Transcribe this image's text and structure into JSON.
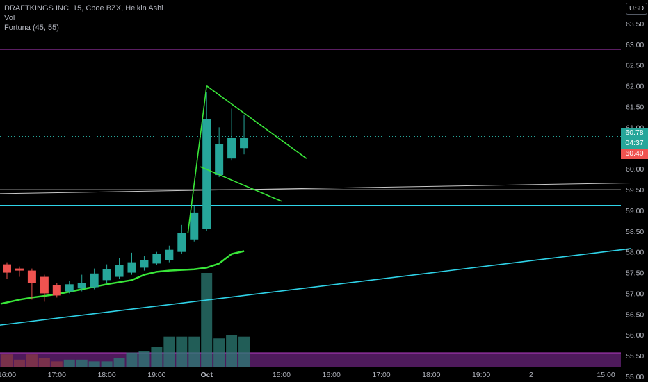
{
  "legend": {
    "title": "DRAFTKINGS INC, 15, Cboe BZX, Heikin Ashi",
    "vol": "Vol",
    "indicator": "Fortuna (45, 55)"
  },
  "currency": "USD",
  "price_tags": {
    "current": "60.78",
    "countdown": "04:37",
    "second": "60.40"
  },
  "colors": {
    "background": "#000000",
    "up": "#26a69a",
    "down": "#ef5350",
    "drawing_green": "#39e639",
    "trend_cyan": "#2fd3e8",
    "band_purple": "#b53cc4",
    "volume_up": "#1f5c57",
    "volume_down": "#6b2a2a",
    "band_fill": "#5c1f6b"
  },
  "chart_data": {
    "type": "candlestick",
    "style": "Heikin Ashi",
    "y_axis": {
      "min": 54.9,
      "max": 63.9,
      "ticks": [
        "55.00",
        "55.50",
        "56.00",
        "56.50",
        "57.00",
        "57.50",
        "58.00",
        "58.50",
        "59.00",
        "59.50",
        "60.00",
        "60.50",
        "61.00",
        "61.50",
        "62.00",
        "62.50",
        "63.00",
        "63.50"
      ]
    },
    "x_axis": {
      "ticks": [
        {
          "label": "16:00",
          "slot": 0
        },
        {
          "label": "17:00",
          "slot": 4
        },
        {
          "label": "18:00",
          "slot": 8
        },
        {
          "label": "19:00",
          "slot": 12
        },
        {
          "label": "Oct",
          "slot": 16
        },
        {
          "label": "15:00",
          "slot": 22
        },
        {
          "label": "16:00",
          "slot": 26
        },
        {
          "label": "17:00",
          "slot": 30
        },
        {
          "label": "18:00",
          "slot": 34
        },
        {
          "label": "19:00",
          "slot": 38
        },
        {
          "label": "2",
          "slot": 42
        },
        {
          "label": "15:00",
          "slot": 48
        }
      ]
    },
    "candles": [
      {
        "o": 57.7,
        "c": 57.5,
        "h": 57.75,
        "l": 57.35
      },
      {
        "o": 57.6,
        "c": 57.55,
        "h": 57.65,
        "l": 57.4
      },
      {
        "o": 57.55,
        "c": 57.25,
        "h": 57.6,
        "l": 56.85
      },
      {
        "o": 57.4,
        "c": 57.0,
        "h": 57.45,
        "l": 56.8
      },
      {
        "o": 57.2,
        "c": 56.95,
        "h": 57.25,
        "l": 56.9
      },
      {
        "o": 57.05,
        "c": 57.22,
        "h": 57.3,
        "l": 57.0
      },
      {
        "o": 57.12,
        "c": 57.25,
        "h": 57.45,
        "l": 57.05
      },
      {
        "o": 57.15,
        "c": 57.48,
        "h": 57.6,
        "l": 57.1
      },
      {
        "o": 57.32,
        "c": 57.58,
        "h": 57.7,
        "l": 57.25
      },
      {
        "o": 57.4,
        "c": 57.68,
        "h": 57.85,
        "l": 57.35
      },
      {
        "o": 57.5,
        "c": 57.75,
        "h": 57.98,
        "l": 57.45
      },
      {
        "o": 57.62,
        "c": 57.8,
        "h": 57.9,
        "l": 57.55
      },
      {
        "o": 57.72,
        "c": 57.95,
        "h": 58.0,
        "l": 57.68
      },
      {
        "o": 57.8,
        "c": 58.05,
        "h": 58.15,
        "l": 57.75
      },
      {
        "o": 58.0,
        "c": 58.45,
        "h": 58.65,
        "l": 57.95
      },
      {
        "o": 58.3,
        "c": 58.95,
        "h": 59.1,
        "l": 58.25
      },
      {
        "o": 58.55,
        "c": 61.2,
        "h": 61.85,
        "l": 58.5
      },
      {
        "o": 59.85,
        "c": 60.6,
        "h": 61.0,
        "l": 59.8
      },
      {
        "o": 60.25,
        "c": 60.75,
        "h": 61.45,
        "l": 60.2
      },
      {
        "o": 60.5,
        "c": 60.75,
        "h": 61.3,
        "l": 60.35
      }
    ],
    "volume": [
      0.07,
      0.04,
      0.07,
      0.05,
      0.03,
      0.04,
      0.04,
      0.03,
      0.03,
      0.05,
      0.08,
      0.09,
      0.11,
      0.17,
      0.17,
      0.17,
      0.53,
      0.16,
      0.18,
      0.17
    ],
    "fortuna_line": [
      {
        "slot": -0.5,
        "v": 56.75
      },
      {
        "slot": 1,
        "v": 56.85
      },
      {
        "slot": 2,
        "v": 56.9
      },
      {
        "slot": 4,
        "v": 56.98
      },
      {
        "slot": 6,
        "v": 57.1
      },
      {
        "slot": 8,
        "v": 57.22
      },
      {
        "slot": 10,
        "v": 57.32
      },
      {
        "slot": 11,
        "v": 57.45
      },
      {
        "slot": 12,
        "v": 57.52
      },
      {
        "slot": 13,
        "v": 57.55
      },
      {
        "slot": 15,
        "v": 57.58
      },
      {
        "slot": 16,
        "v": 57.62
      },
      {
        "slot": 17,
        "v": 57.72
      },
      {
        "slot": 18,
        "v": 57.95
      },
      {
        "slot": 19,
        "v": 58.02
      }
    ],
    "drawings": {
      "cyan_lower_trend": [
        {
          "slot": -1,
          "v": 56.22
        },
        {
          "slot": 50,
          "v": 58.08
        }
      ],
      "cyan_horizontal": 59.12,
      "white_trend": [
        {
          "slot": -1,
          "v": 59.4
        },
        {
          "slot": 50,
          "v": 59.66
        }
      ],
      "white_horizontal": 59.5,
      "purple_upper": 62.88,
      "purple_band": [
        54.9,
        55.57
      ],
      "green_rise": [
        {
          "slot": 14.5,
          "v": 58.45
        },
        {
          "slot": 16,
          "v": 62.0
        }
      ],
      "green_top": [
        {
          "slot": 16,
          "v": 62.0
        },
        {
          "slot": 24,
          "v": 60.25
        }
      ],
      "green_lower": [
        {
          "slot": 15.5,
          "v": 60.05
        },
        {
          "slot": 22,
          "v": 59.22
        }
      ]
    }
  }
}
